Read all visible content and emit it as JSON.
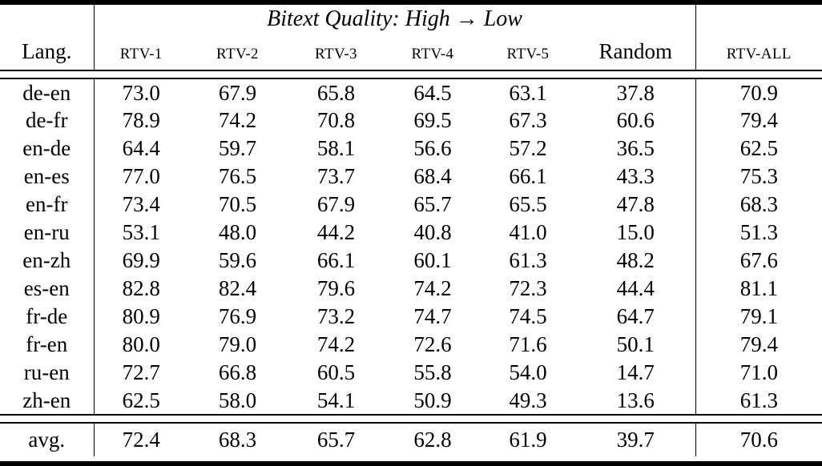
{
  "table": {
    "group_header": "Bitext Quality: High → Low",
    "columns": [
      "Lang.",
      "RTV-1",
      "RTV-2",
      "RTV-3",
      "RTV-4",
      "RTV-5",
      "Random",
      "RTV-ALL"
    ],
    "rows": [
      {
        "lang": "de-en",
        "values": [
          "73.0",
          "67.9",
          "65.8",
          "64.5",
          "63.1",
          "37.8",
          "70.9"
        ],
        "bold": [
          0
        ]
      },
      {
        "lang": "de-fr",
        "values": [
          "78.9",
          "74.2",
          "70.8",
          "69.5",
          "67.3",
          "60.6",
          "79.4"
        ],
        "bold": [
          6
        ]
      },
      {
        "lang": "en-de",
        "values": [
          "64.4",
          "59.7",
          "58.1",
          "56.6",
          "57.2",
          "36.5",
          "62.5"
        ],
        "bold": [
          0
        ]
      },
      {
        "lang": "en-es",
        "values": [
          "77.0",
          "76.5",
          "73.7",
          "68.4",
          "66.1",
          "43.3",
          "75.3"
        ],
        "bold": [
          0
        ]
      },
      {
        "lang": "en-fr",
        "values": [
          "73.4",
          "70.5",
          "67.9",
          "65.7",
          "65.5",
          "47.8",
          "68.3"
        ],
        "bold": [
          0
        ]
      },
      {
        "lang": "en-ru",
        "values": [
          "53.1",
          "48.0",
          "44.2",
          "40.8",
          "41.0",
          "15.0",
          "51.3"
        ],
        "bold": [
          0
        ]
      },
      {
        "lang": "en-zh",
        "values": [
          "69.9",
          "59.6",
          "66.1",
          "60.1",
          "61.3",
          "48.2",
          "67.6"
        ],
        "bold": [
          0
        ]
      },
      {
        "lang": "es-en",
        "values": [
          "82.8",
          "82.4",
          "79.6",
          "74.2",
          "72.3",
          "44.4",
          "81.1"
        ],
        "bold": [
          0
        ]
      },
      {
        "lang": "fr-de",
        "values": [
          "80.9",
          "76.9",
          "73.2",
          "74.7",
          "74.5",
          "64.7",
          "79.1"
        ],
        "bold": [
          0
        ]
      },
      {
        "lang": "fr-en",
        "values": [
          "80.0",
          "79.0",
          "74.2",
          "72.6",
          "71.6",
          "50.1",
          "79.4"
        ],
        "bold": [
          0
        ]
      },
      {
        "lang": "ru-en",
        "values": [
          "72.7",
          "66.8",
          "60.5",
          "55.8",
          "54.0",
          "14.7",
          "71.0"
        ],
        "bold": [
          0
        ]
      },
      {
        "lang": "zh-en",
        "values": [
          "62.5",
          "58.0",
          "54.1",
          "50.9",
          "49.3",
          "13.6",
          "61.3"
        ],
        "bold": [
          0
        ]
      }
    ],
    "average_row": {
      "lang": "avg.",
      "values": [
        "72.4",
        "68.3",
        "65.7",
        "62.8",
        "61.9",
        "39.7",
        "70.6"
      ],
      "bold": [
        0
      ]
    },
    "colors": {
      "text": "#000000",
      "background": "#ffffff",
      "rule": "#000000"
    }
  }
}
